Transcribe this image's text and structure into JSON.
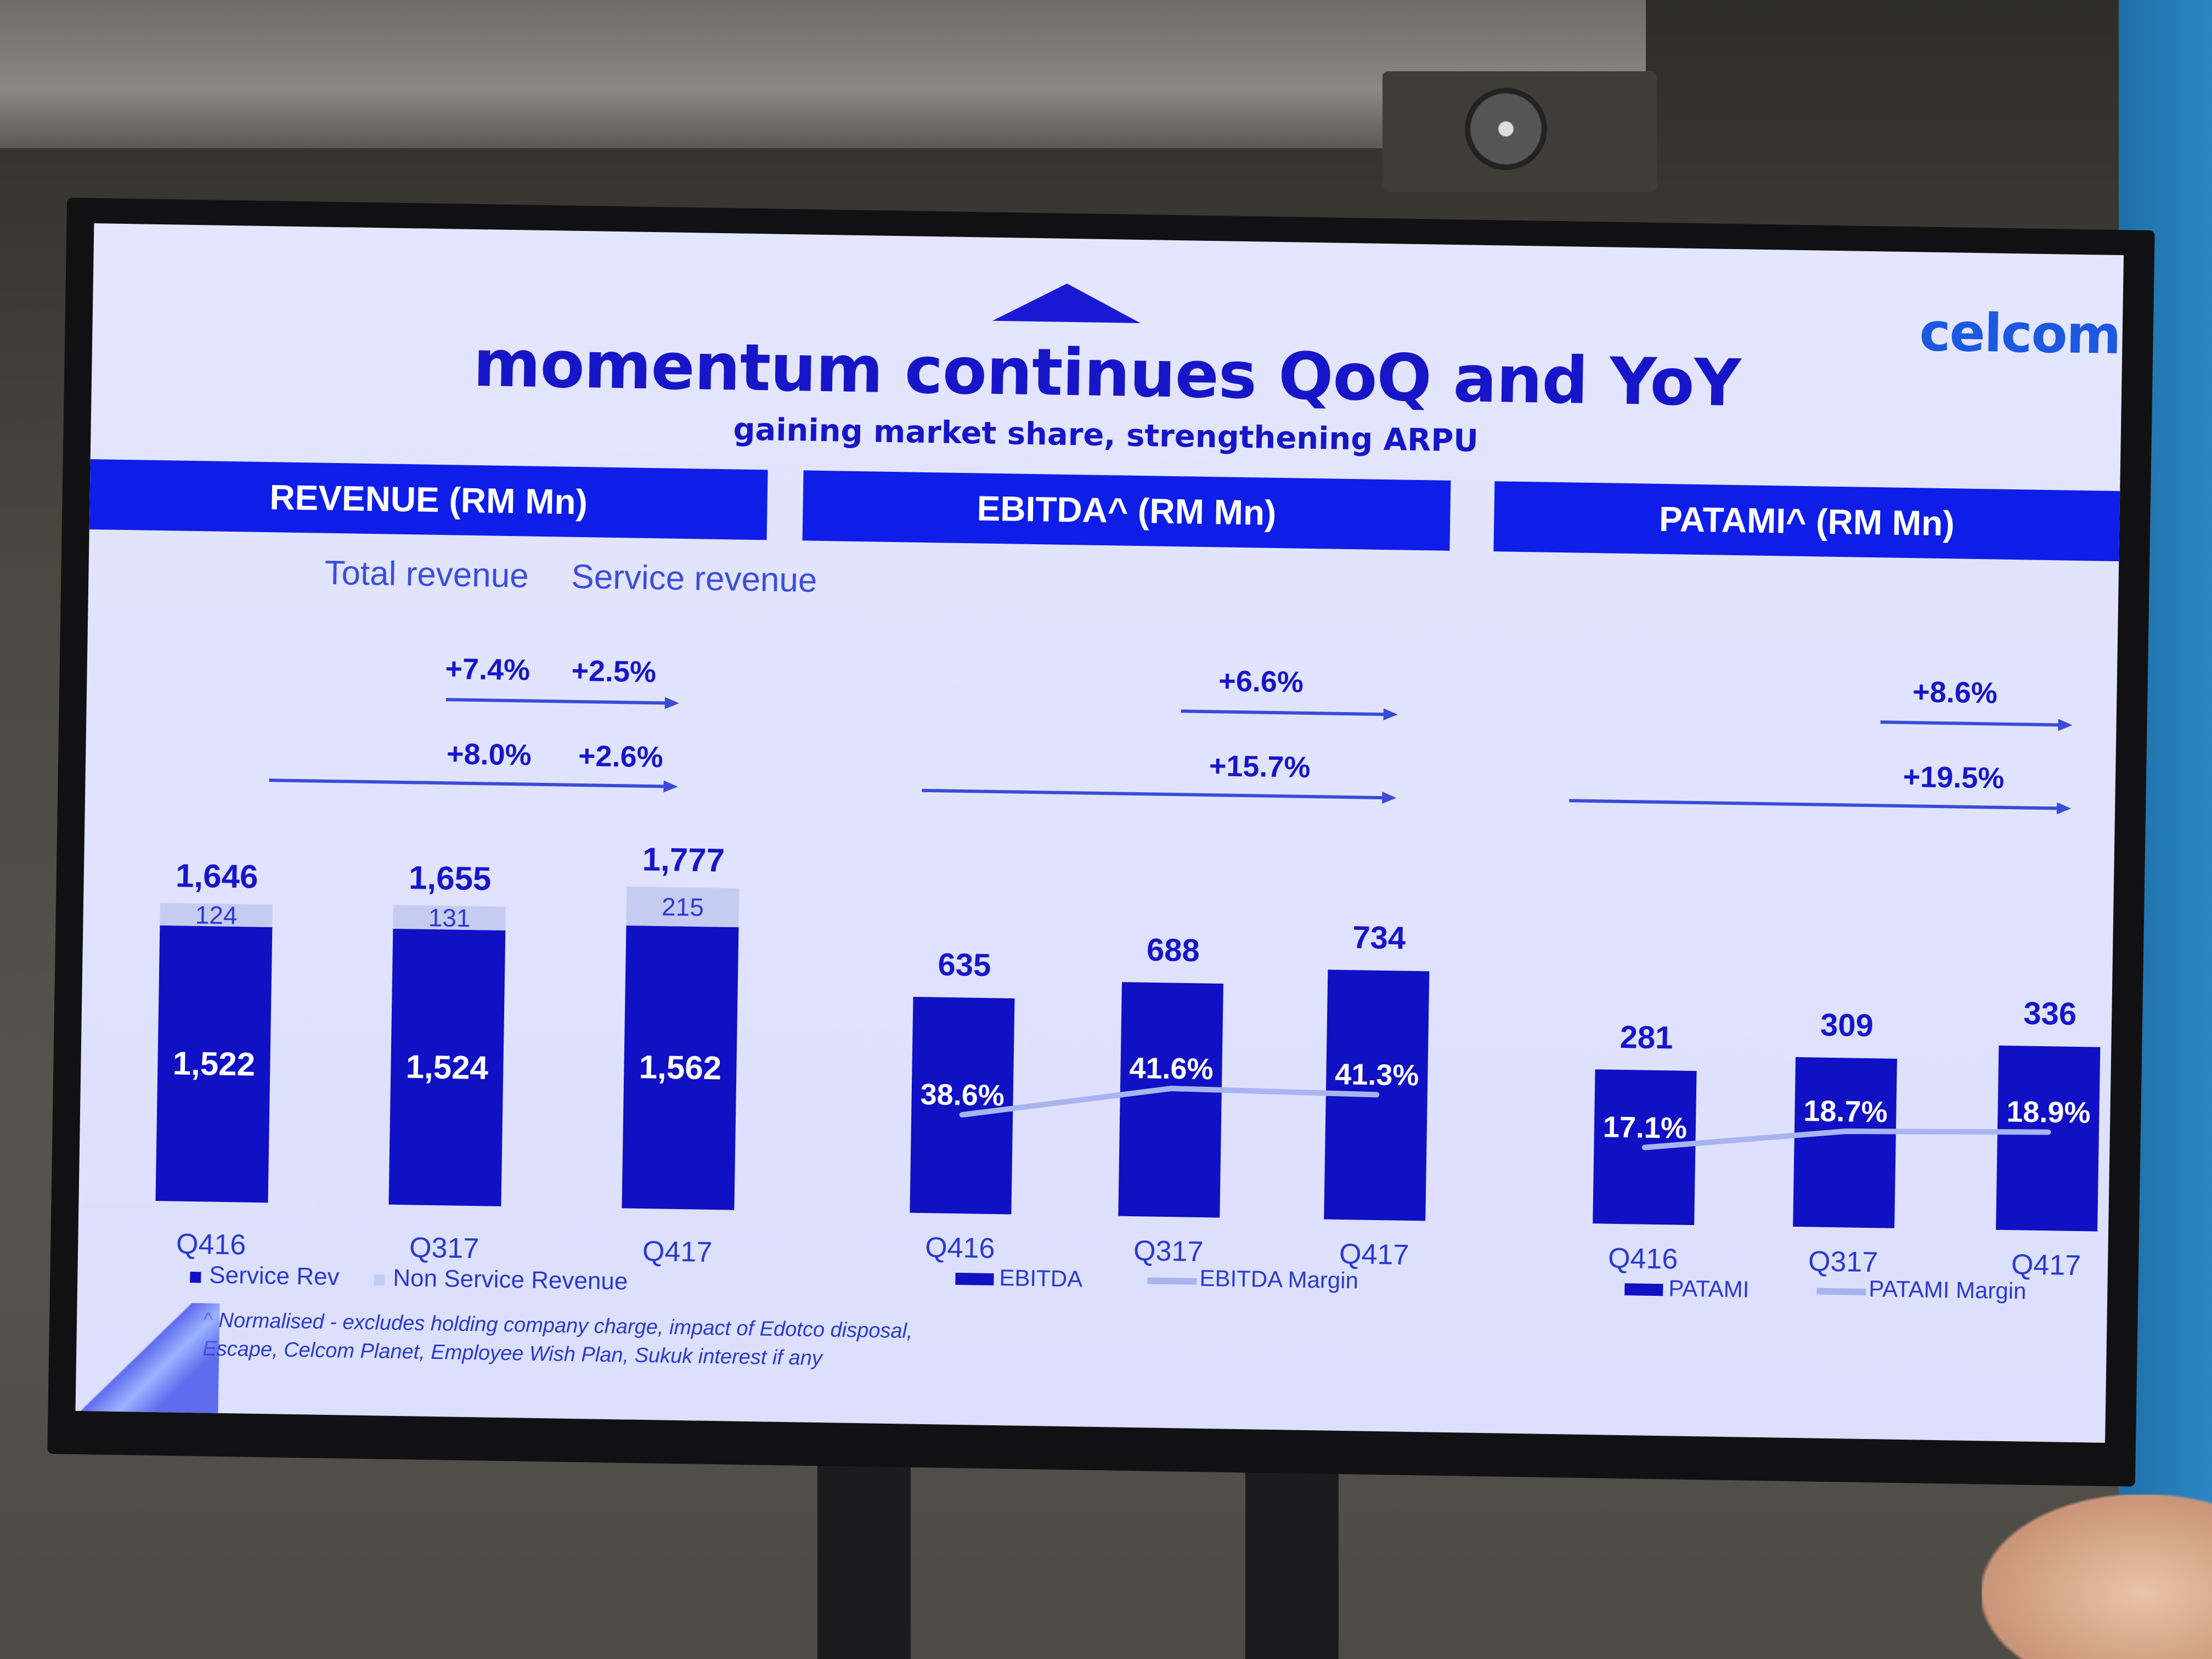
{
  "slide": {
    "logo": "celcom",
    "title": "momentum continues QoQ and YoY",
    "subtitle": "gaining market share, strengthening ARPU",
    "footnote_line1": "^ Normalised - excludes holding company charge, impact of Edotco disposal,",
    "footnote_line2": "Escape, Celcom Planet, Employee Wish Plan, Sukuk interest if any"
  },
  "colors": {
    "primary": "#1616c8",
    "band": "#0e1ee8",
    "bar": "#1010c4",
    "non_service": "#c6cbf2",
    "margin_line": "#a8b4f0",
    "background": "#dcdffd"
  },
  "chart_data": [
    {
      "type": "bar",
      "title": "REVENUE (RM Mn)",
      "categories": [
        "Q416",
        "Q317",
        "Q417"
      ],
      "series": [
        {
          "name": "Service Rev",
          "values": [
            1522,
            1524,
            1562
          ],
          "labels": [
            "1,522",
            "1,524",
            "1,562"
          ]
        },
        {
          "name": "Non Service Revenue",
          "values": [
            124,
            131,
            215
          ],
          "labels": [
            "124",
            "131",
            "215"
          ]
        }
      ],
      "totals": [
        "1,646",
        "1,655",
        "1,777"
      ],
      "column_headers": [
        "Total revenue",
        "Service revenue"
      ],
      "growth_qoq": [
        "+7.4%",
        "+2.5%"
      ],
      "growth_yoy": [
        "+8.0%",
        "+2.6%"
      ],
      "legend": [
        "Service Rev",
        "Non Service Revenue"
      ],
      "stacked": true
    },
    {
      "type": "bar",
      "title": "EBITDA^ (RM Mn)",
      "categories": [
        "Q416",
        "Q317",
        "Q417"
      ],
      "series": [
        {
          "name": "EBITDA",
          "values": [
            635,
            688,
            734
          ],
          "labels": [
            "635",
            "688",
            "734"
          ]
        },
        {
          "name": "EBITDA Margin",
          "type": "line",
          "values": [
            38.6,
            41.6,
            41.3
          ],
          "labels": [
            "38.6%",
            "41.6%",
            "41.3%"
          ]
        }
      ],
      "growth_qoq": "+6.6%",
      "growth_yoy": "+15.7%",
      "legend": [
        "EBITDA",
        "EBITDA Margin"
      ]
    },
    {
      "type": "bar",
      "title": "PATAMI^ (RM Mn)",
      "categories": [
        "Q416",
        "Q317",
        "Q417"
      ],
      "series": [
        {
          "name": "PATAMI",
          "values": [
            281,
            309,
            336
          ],
          "labels": [
            "281",
            "309",
            "336"
          ]
        },
        {
          "name": "PATAMI Margin",
          "type": "line",
          "values": [
            17.1,
            18.7,
            18.9
          ],
          "labels": [
            "17.1%",
            "18.7%",
            "18.9%"
          ]
        }
      ],
      "growth_qoq": "+8.6%",
      "growth_yoy": "+19.5%",
      "legend": [
        "PATAMI",
        "PATAMI Margin"
      ]
    }
  ]
}
